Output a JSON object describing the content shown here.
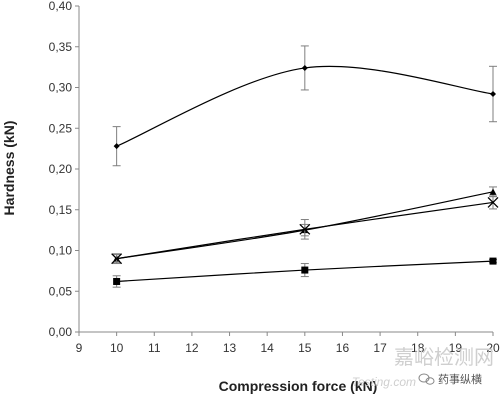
{
  "chart_data": {
    "type": "line",
    "xlabel": "Compression force (kN)",
    "ylabel": "Hardness (kN)",
    "xlim": [
      9,
      20
    ],
    "ylim": [
      0,
      0.4
    ],
    "x_ticks": [
      "9",
      "10",
      "11",
      "12",
      "13",
      "14",
      "15",
      "16",
      "17",
      "18",
      "19",
      "20"
    ],
    "y_ticks": [
      "0,00",
      "0,05",
      "0,10",
      "0,15",
      "0,20",
      "0,25",
      "0,30",
      "0,35",
      "0,40"
    ],
    "grid": false,
    "legend": "none",
    "series": [
      {
        "marker": "diamond",
        "x": [
          10,
          15,
          20
        ],
        "y": [
          0.228,
          0.324,
          0.292
        ],
        "error": [
          0.024,
          0.027,
          0.034
        ]
      },
      {
        "marker": "triangle",
        "x": [
          10,
          15,
          20
        ],
        "y": [
          0.09,
          0.125,
          0.172
        ],
        "error": [
          0.005,
          0.007,
          0.006
        ]
      },
      {
        "marker": "x",
        "x": [
          10,
          15,
          20
        ],
        "y": [
          0.09,
          0.126,
          0.159
        ],
        "error": [
          0.006,
          0.012,
          0.008
        ]
      },
      {
        "marker": "square",
        "x": [
          10,
          15,
          20
        ],
        "y": [
          0.062,
          0.076,
          0.087
        ],
        "error": [
          0.007,
          0.008,
          0.002
        ]
      }
    ]
  },
  "watermark": {
    "site_cn": "嘉峪检测网",
    "site_en": "Testing.com",
    "account": "药事纵横",
    "icon": "wechat-icon"
  },
  "colors": {
    "line": "#000000",
    "error_bar": "#7f7f7f",
    "axis": "#888888"
  }
}
